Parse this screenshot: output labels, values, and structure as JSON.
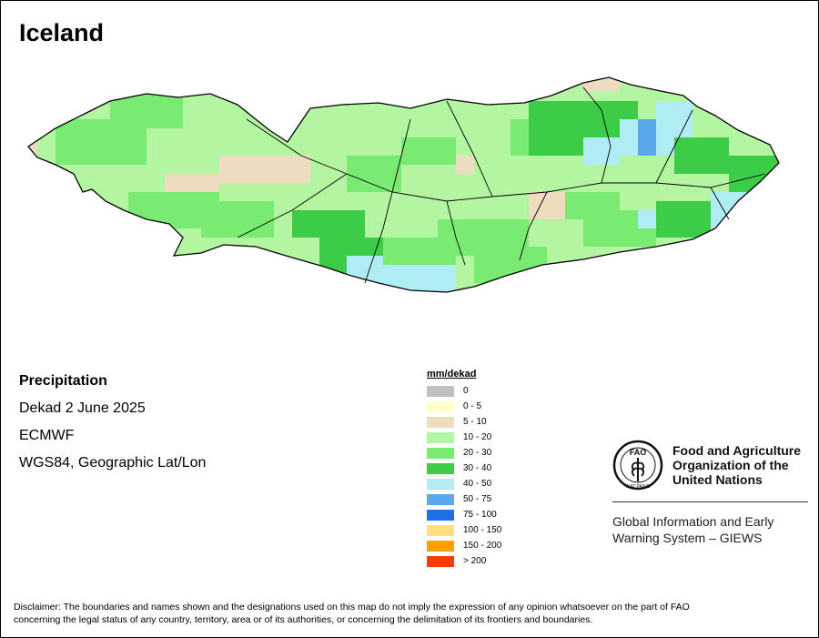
{
  "title": "Iceland",
  "info": {
    "variable": "Precipitation",
    "period": "Dekad 2 June 2025",
    "source": "ECMWF",
    "projection": "WGS84, Geographic Lat/Lon"
  },
  "legend": {
    "title": "mm/dekad",
    "classes": [
      {
        "label": "0",
        "color": "#c0c0c0"
      },
      {
        "label": "0 - 5",
        "color": "#ffffcc"
      },
      {
        "label": "5 - 10",
        "color": "#eedcc0"
      },
      {
        "label": "10 - 20",
        "color": "#b4f5a2"
      },
      {
        "label": "20 - 30",
        "color": "#7aeb72"
      },
      {
        "label": "30 - 40",
        "color": "#3dcc47"
      },
      {
        "label": "40 - 50",
        "color": "#b0ecf4"
      },
      {
        "label": "50 - 75",
        "color": "#5aa8ea"
      },
      {
        "label": "75 - 100",
        "color": "#1e6ee6"
      },
      {
        "label": "100 - 150",
        "color": "#ffe07a"
      },
      {
        "label": "150 - 200",
        "color": "#ffa000"
      },
      {
        "label": "> 200",
        "color": "#ff3c00"
      }
    ]
  },
  "logo": {
    "org_line1": "Food and Agriculture",
    "org_line2": "Organization of the",
    "org_line3": "United Nations",
    "emblem_text": "FAO",
    "emblem_motto": "FIAT PANIS",
    "giews_line1": "Global Information and Early",
    "giews_line2": "Warning System – GIEWS"
  },
  "disclaimer": {
    "line1": "Disclaimer: The boundaries and names shown and the designations used on this map do not imply the expression of any opinion whatsoever on the part of FAO",
    "line2": "concerning the legal status of any country, territory, area or of its authorities, or concerning the delimitation of its frontiers and boundaries."
  }
}
